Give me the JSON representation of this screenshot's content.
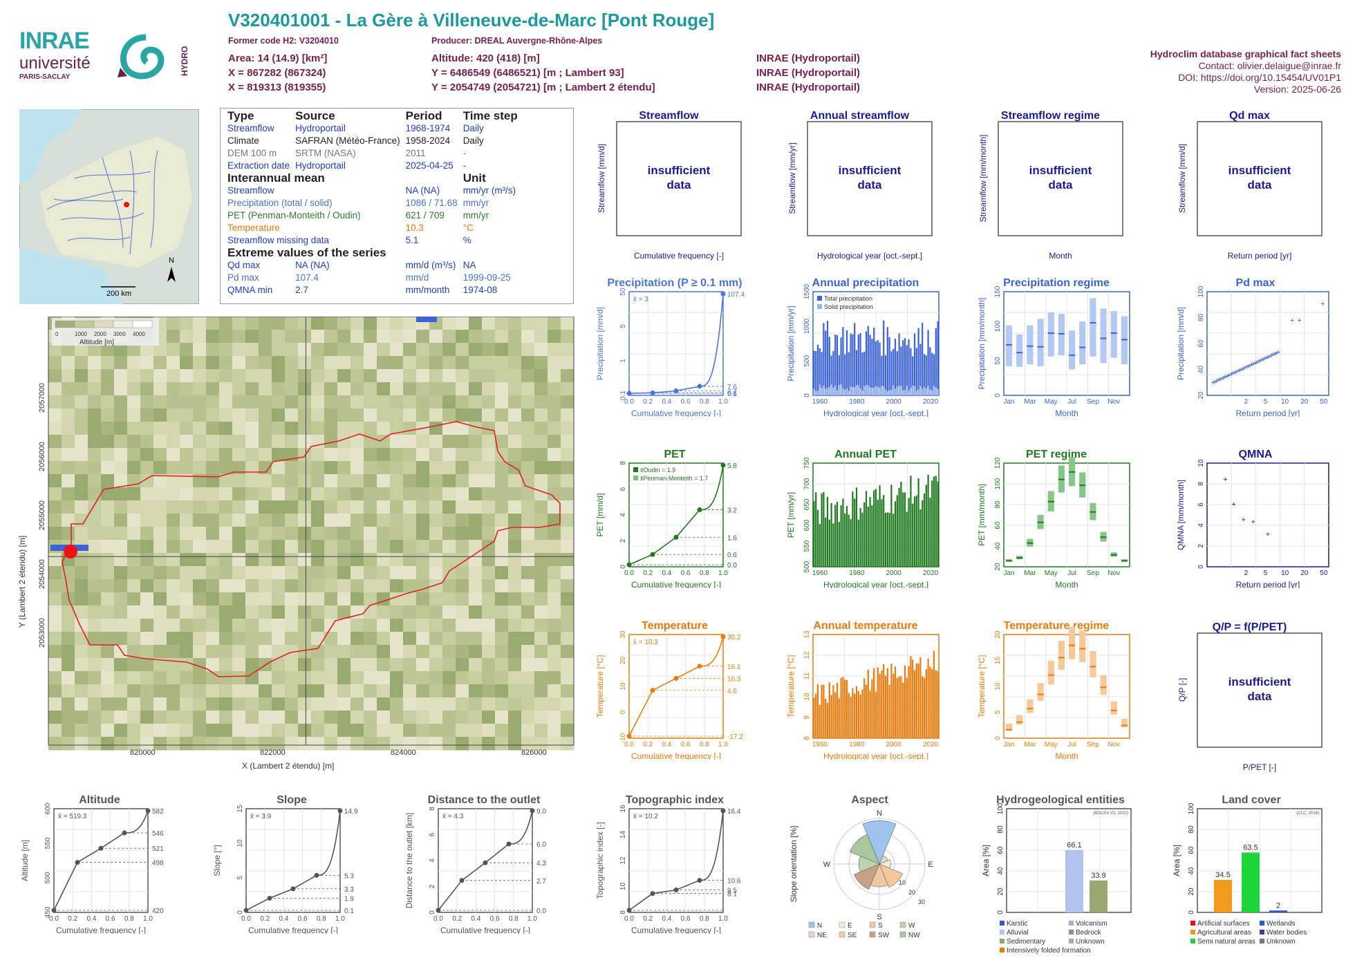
{
  "header": {
    "title": "V320401001 - La Gère à Villeneuve-de-Marc [Pont Rouge]",
    "former_code": "Former code H2: V3204010",
    "producer": "Producer: DREAL Auvergne-Rhône-Alpes",
    "area": "Area: 14 (14.9) [km²]",
    "altitude": "Altitude: 420 (418) [m]",
    "x93": "X = 867282 (867324)",
    "y93": "Y = 6486549 (6486521) [m ; Lambert 93]",
    "x2e": "X = 819313 (819355)",
    "y2e": "Y = 2054749 (2054721) [m ; Lambert 2 étendu]",
    "src1": "INRAE (Hydroportail)",
    "src2": "INRAE (Hydroportail)",
    "src3": "INRAE (Hydroportail)",
    "right_title": "Hydroclim database graphical fact sheets",
    "contact": "Contact: olivier.delaigue@inrae.fr",
    "doi": "DOI: https://doi.org/10.15454/UV01P1",
    "version": "Version: 2025-06-26",
    "logo_inrae": "INRAE",
    "logo_univ": "université",
    "logo_univ2": "PARIS-SACLAY",
    "logo_hydro": "HYDRO",
    "minimap_scale": "200 km",
    "minimap_north": "N"
  },
  "info": {
    "head": [
      "Type",
      "Source",
      "Period",
      "Time step"
    ],
    "rows": [
      [
        "Streamflow",
        "Hydroportail",
        "1968-1974",
        "Daily"
      ],
      [
        "Climate",
        "SAFRAN (Météo-France)",
        "1958-2024",
        "Daily"
      ],
      [
        "DEM 100 m",
        "SRTM (NASA)",
        "2011",
        "-"
      ],
      [
        "Extraction date",
        "Hydroportail",
        "2025-04-25",
        "-"
      ]
    ],
    "inter_head": "Interannual mean",
    "unit_head": "Unit",
    "inter": [
      [
        "Streamflow",
        "NA (NA)",
        "mm/yr (m³/s)"
      ],
      [
        "Precipitation (total / solid)",
        "1086 / 71.68",
        "mm/yr"
      ],
      [
        "PET (Penman-Monteith / Oudin)",
        "621 / 709",
        "mm/yr"
      ],
      [
        "Temperature",
        "10.3",
        "°C"
      ],
      [
        "Streamflow missing data",
        "5.1",
        "%"
      ]
    ],
    "extreme_head": "Extreme values of the series",
    "extreme": [
      [
        "Qd max",
        "NA (NA)",
        "mm/d (m³/s)",
        "NA"
      ],
      [
        "Pd max",
        "107.4",
        "mm/d",
        "1999-09-25"
      ],
      [
        "QMNA min",
        "2.7",
        "mm/month",
        "1974-08"
      ]
    ]
  },
  "map": {
    "legend_title": "Altitude [m]",
    "legend_ticks": [
      "0",
      "1000",
      "2000",
      "3000",
      "4000"
    ],
    "x_ticks": [
      "820000",
      "822000",
      "824000",
      "826000"
    ],
    "y_ticks": [
      "2053000",
      "2054000",
      "2055000",
      "2056000",
      "2057000"
    ],
    "xlabel": "X (Lambert 2 étendu) [m]",
    "ylabel": "Y (Lambert 2 étendu) [m]"
  },
  "insufficient": "insufficient data",
  "chart_data": [
    {
      "id": "streamflow",
      "type": "line",
      "title": "Streamflow",
      "ylabel": "Streamflow [mm/d]",
      "xlabel": "Cumulative frequency [-]",
      "status": "insufficient data"
    },
    {
      "id": "annual_streamflow",
      "type": "bar",
      "title": "Annual streamflow",
      "ylabel": "Streamflow [mm/yr]",
      "xlabel": "Hydrological year [oct.-sept.]",
      "status": "insufficient data"
    },
    {
      "id": "streamflow_regime",
      "type": "bar",
      "title": "Streamflow regime",
      "ylabel": "Streamflow [mm/month]",
      "xlabel": "Month",
      "status": "insufficient data"
    },
    {
      "id": "qd_max",
      "type": "scatter",
      "title": "Qd max",
      "ylabel": "Streamflow [mm/d]",
      "xlabel": "Return period [yr]",
      "status": "insufficient data"
    },
    {
      "id": "precip_cdf",
      "type": "line",
      "title": "Precipitation (P ≥ 0.1 mm)",
      "ylabel": "Precipitation [mm/d]",
      "xlabel": "Cumulative frequency [-]",
      "mean_label": "x̄ = 3",
      "x": [
        0,
        0.25,
        0.5,
        0.75,
        1
      ],
      "y": [
        0.1,
        0.6,
        2.7,
        7.6,
        107.4
      ],
      "right_ticks": [
        "107.4",
        "7.6",
        "2.7",
        "0.6",
        "0.1"
      ],
      "yticks": [
        "0.1",
        "1",
        "5",
        "50"
      ],
      "xticks": [
        "0.0",
        "0.2",
        "0.4",
        "0.6",
        "0.8",
        "1.0"
      ]
    },
    {
      "id": "annual_precip",
      "type": "bar",
      "title": "Annual precipitation",
      "ylabel": "Precipitation [mm/yr]",
      "xlabel": "Hydrological year [oct.-sept.]",
      "legend": [
        "Total precipitation",
        "Solid precipitation"
      ],
      "yticks": [
        "0",
        "500",
        "1000",
        "1500"
      ],
      "xticks": [
        "1960",
        "1980",
        "2000",
        "2020"
      ],
      "ylim": [
        0,
        1600
      ]
    },
    {
      "id": "precip_regime",
      "type": "bar",
      "title": "Precipitation regime",
      "ylabel": "Precipitation [mm/month]",
      "xlabel": "Month",
      "categories": [
        "Jan",
        "Feb",
        "Mar",
        "Apr",
        "May",
        "Jun",
        "Jul",
        "Aug",
        "Sep",
        "Oct",
        "Nov",
        "Dec"
      ],
      "median": [
        78,
        66,
        76,
        75,
        96,
        95,
        62,
        74,
        112,
        88,
        96,
        86
      ],
      "q10": [
        45,
        44,
        48,
        45,
        60,
        62,
        40,
        48,
        60,
        50,
        58,
        48
      ],
      "q90": [
        108,
        94,
        108,
        118,
        128,
        126,
        100,
        114,
        150,
        134,
        130,
        122
      ],
      "yticks": [
        "0",
        "50",
        "100",
        "150"
      ],
      "ylim": [
        0,
        160
      ],
      "xticks": [
        "Jan",
        "Mar",
        "May",
        "Jul",
        "Sep",
        "Nov"
      ]
    },
    {
      "id": "pd_max",
      "type": "scatter",
      "title": "Pd max",
      "ylabel": "Precipitation [mm/d]",
      "xlabel": "Return period [yr]",
      "yticks": [
        "20",
        "40",
        "60",
        "80",
        "100"
      ],
      "xticks": [
        "2",
        "5",
        "10",
        "20",
        "50"
      ]
    },
    {
      "id": "pet_cdf",
      "type": "line",
      "title": "PET",
      "ylabel": "PET [mm/d]",
      "xlabel": "Cumulative frequency [-]",
      "legend": [
        "x̄Oudin = 1.9",
        "x̄Penman-Monteith = 1.7"
      ],
      "x": [
        0,
        0.25,
        0.5,
        0.75,
        1
      ],
      "y": [
        0.0,
        0.6,
        1.6,
        3.2,
        5.8
      ],
      "right_ticks": [
        "5.8",
        "3.2",
        "1.6",
        "0.6",
        "0.0"
      ],
      "yticks": [
        "0",
        "2",
        "4",
        "6",
        "8"
      ],
      "xticks": [
        "0.0",
        "0.2",
        "0.4",
        "0.6",
        "0.8",
        "1.0"
      ]
    },
    {
      "id": "annual_pet",
      "type": "bar",
      "title": "Annual PET",
      "ylabel": "PET [mm/yr]",
      "xlabel": "Hydrological year [oct.-sept.]",
      "yticks": [
        "500",
        "550",
        "600",
        "650",
        "700",
        "750"
      ],
      "xticks": [
        "1960",
        "1980",
        "2000",
        "2020"
      ]
    },
    {
      "id": "pet_regime",
      "type": "bar",
      "title": "PET regime",
      "ylabel": "PET [mm/month]",
      "xlabel": "Month",
      "categories": [
        "Jan",
        "Feb",
        "Mar",
        "Apr",
        "May",
        "Jun",
        "Jul",
        "Aug",
        "Sep",
        "Oct",
        "Nov",
        "Dec"
      ],
      "median": [
        8,
        12,
        32,
        60,
        88,
        118,
        128,
        110,
        74,
        40,
        16,
        8
      ],
      "yticks": [
        "20",
        "40",
        "60",
        "80",
        "100",
        "120"
      ],
      "xticks": [
        "Jan",
        "Mar",
        "May",
        "Jul",
        "Sep",
        "Nov"
      ]
    },
    {
      "id": "qmna",
      "type": "scatter",
      "title": "QMNA",
      "ylabel": "QMNA [mm/month]",
      "xlabel": "Return period [yr]",
      "yticks": [
        "0",
        "2",
        "4",
        "6",
        "8",
        "10"
      ],
      "xticks": [
        "2",
        "5",
        "10",
        "20",
        "50"
      ]
    },
    {
      "id": "temp_cdf",
      "type": "line",
      "title": "Temperature",
      "ylabel": "Temperature [°C]",
      "xlabel": "Cumulative frequency [-]",
      "mean_label": "x̄ = 10.3",
      "x": [
        0,
        0.25,
        0.5,
        0.75,
        1
      ],
      "y": [
        -17.2,
        4.6,
        10.3,
        16.1,
        30.2
      ],
      "right_ticks": [
        "30.2",
        "16.1",
        "10.3",
        "4.6",
        "-17.2"
      ],
      "yticks": [
        "-10",
        "0",
        "10",
        "20",
        "30"
      ],
      "xticks": [
        "0.0",
        "0.2",
        "0.4",
        "0.6",
        "0.8",
        "1.0"
      ]
    },
    {
      "id": "annual_temp",
      "type": "bar",
      "title": "Annual temperature",
      "ylabel": "Temperature [°C]",
      "xlabel": "Hydrological year [oct.-sept.]",
      "yticks": [
        "8",
        "9",
        "10",
        "11",
        "12",
        "13"
      ],
      "xticks": [
        "1960",
        "1980",
        "2000",
        "2020"
      ]
    },
    {
      "id": "temp_regime",
      "type": "bar",
      "title": "Temperature regime",
      "ylabel": "Temperature [°C]",
      "xlabel": "Month",
      "categories": [
        "Jan",
        "Feb",
        "Mar",
        "Apr",
        "May",
        "Jun",
        "Jul",
        "Aug",
        "Sep",
        "Oct",
        "Nov",
        "Dec"
      ],
      "median": [
        1.8,
        3.4,
        6.3,
        9.3,
        13.4,
        17.1,
        19.7,
        19.0,
        15.2,
        10.8,
        5.9,
        2.7
      ],
      "yticks": [
        "0",
        "5",
        "10",
        "15",
        "20"
      ],
      "xticks": [
        "Jan",
        "Mar",
        "May",
        "Jul",
        "Sep",
        "Nov"
      ]
    },
    {
      "id": "qp",
      "type": "scatter",
      "title": "Q/P = f(P/PET)",
      "ylabel": "Q/P [-]",
      "xlabel": "P/PET [-]",
      "status": "insufficient data"
    },
    {
      "id": "altitude",
      "type": "line",
      "title": "Altitude",
      "ylabel": "Altitude [m]",
      "xlabel": "Cumulative frequency [-]",
      "mean_label": "x̄ = 519.3",
      "x": [
        0,
        0.25,
        0.5,
        0.75,
        1
      ],
      "y": [
        420,
        498,
        521,
        546,
        582
      ],
      "right_ticks": [
        "582",
        "546",
        "521",
        "498",
        "420"
      ],
      "yticks": [
        "450",
        "500",
        "550",
        "600"
      ],
      "xticks": [
        "0.0",
        "0.2",
        "0.4",
        "0.6",
        "0.8",
        "1.0"
      ]
    },
    {
      "id": "slope",
      "type": "line",
      "title": "Slope",
      "ylabel": "Slope [°]",
      "xlabel": "Cumulative frequency [-]",
      "mean_label": "x̄ = 3.9",
      "x": [
        0,
        0.25,
        0.5,
        0.75,
        1
      ],
      "y": [
        0.1,
        1.9,
        3.3,
        5.3,
        14.9
      ],
      "right_ticks": [
        "14.9",
        "5.3",
        "3.3",
        "1.9",
        "0.1"
      ],
      "yticks": [
        "0",
        "5",
        "10",
        "15"
      ],
      "xticks": [
        "0.0",
        "0.2",
        "0.4",
        "0.6",
        "0.8",
        "1.0"
      ]
    },
    {
      "id": "distance",
      "type": "line",
      "title": "Distance to the outlet",
      "ylabel": "Distance to the outlet [km]",
      "xlabel": "Cumulative frequency [-]",
      "mean_label": "x̄ = 4.3",
      "x": [
        0,
        0.25,
        0.5,
        0.75,
        1
      ],
      "y": [
        0.0,
        2.7,
        4.3,
        6.0,
        9.0
      ],
      "right_ticks": [
        "9.0",
        "6.0",
        "4.3",
        "2.7",
        "0.0"
      ],
      "yticks": [
        "0",
        "2",
        "4",
        "6",
        "8"
      ],
      "xticks": [
        "0.0",
        "0.2",
        "0.4",
        "0.6",
        "0.8",
        "1.0"
      ]
    },
    {
      "id": "topo",
      "type": "line",
      "title": "Topographic index",
      "ylabel": "Topographic index [-]",
      "xlabel": "Cumulative frequency [-]",
      "mean_label": "x̄ = 10.2",
      "x": [
        0,
        0.25,
        0.5,
        0.75,
        1
      ],
      "y": [
        8.1,
        9.5,
        9.8,
        10.6,
        16.4
      ],
      "right_ticks": [
        "16.4",
        "10.6",
        "9.5",
        "8.1"
      ],
      "yticks": [
        "8",
        "10",
        "12",
        "14",
        "16"
      ],
      "xticks": [
        "0.0",
        "0.2",
        "0.4",
        "0.6",
        "0.8",
        "1.0"
      ]
    },
    {
      "id": "aspect",
      "type": "pie",
      "title": "Aspect",
      "ylabel": "Slope orientation [%]",
      "compass": [
        "N",
        "E",
        "S",
        "W"
      ],
      "rings": [
        "10",
        "20",
        "30"
      ],
      "legend": [
        "N",
        "E",
        "S",
        "W",
        "NE",
        "SE",
        "SW",
        "NW"
      ]
    },
    {
      "id": "hydrogeo",
      "type": "bar",
      "title": "Hydrogeological entities",
      "ylabel": "Area [%]",
      "source": "(BDLISA V3, 2022)",
      "categories": [
        "Alluvial",
        "Sedimentary"
      ],
      "values": [
        66.1,
        33.9
      ],
      "yticks": [
        "0",
        "20",
        "40",
        "60",
        "80",
        "100"
      ],
      "legend": [
        "Karstic",
        "Volcanism",
        "Alluvial",
        "Bedrock",
        "Sedimentary",
        "Unknown",
        "Intensively folded formation"
      ]
    },
    {
      "id": "landcover",
      "type": "bar",
      "title": "Land cover",
      "ylabel": "Area [%]",
      "source": "(CLC, 2018)",
      "categories": [
        "Agricultural areas",
        "Semi natural areas",
        "Water bodies"
      ],
      "values": [
        34.5,
        63.5,
        2
      ],
      "yticks": [
        "0",
        "20",
        "40",
        "60",
        "80",
        "100"
      ],
      "legend": [
        "Artificial surfaces",
        "Wetlands",
        "Agricultural areas",
        "Water bodies",
        "Semi natural areas",
        "Unknown"
      ]
    }
  ]
}
